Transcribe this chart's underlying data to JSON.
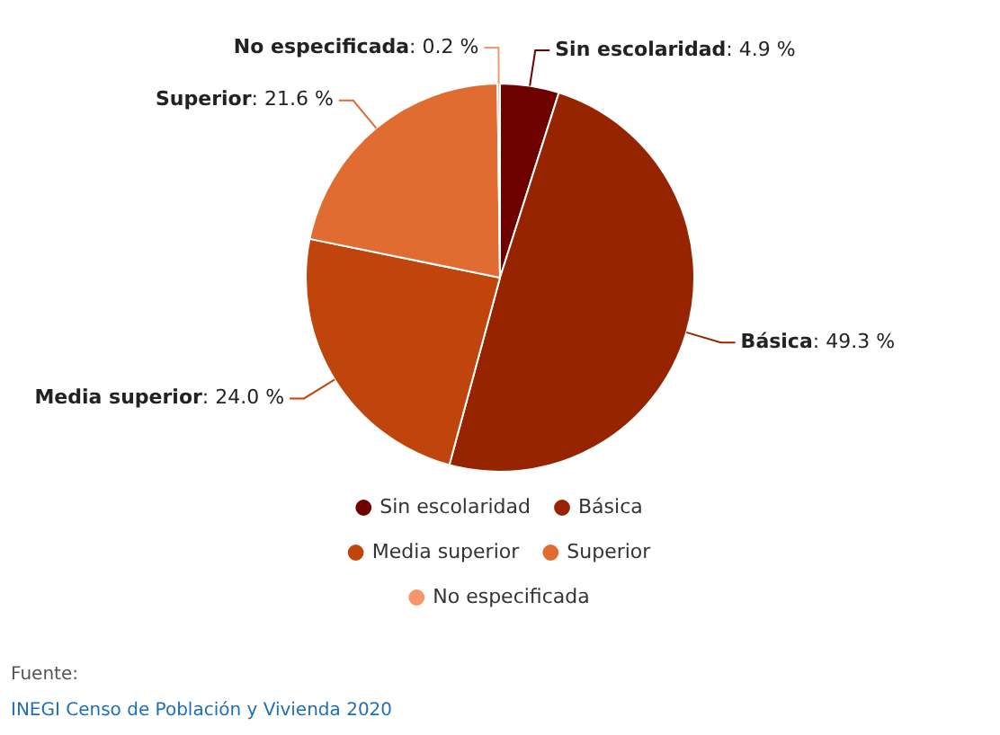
{
  "chart_data": {
    "type": "pie",
    "categories": [
      "Sin escolaridad",
      "Básica",
      "Media superior",
      "Superior",
      "No especificada"
    ],
    "values": [
      4.9,
      49.3,
      24.0,
      21.6,
      0.2
    ],
    "colors": [
      "#6e0000",
      "#962400",
      "#bf450c",
      "#e06c32",
      "#f7956a"
    ],
    "value_labels": [
      ": 4.9 %",
      ": 49.3 %",
      ": 24.0 %",
      ": 21.6 %",
      ": 0.2 %"
    ],
    "legend": "bottom",
    "annotations": [
      "Fuente:",
      "INEGI Censo de Población y Vivienda 2020"
    ]
  }
}
